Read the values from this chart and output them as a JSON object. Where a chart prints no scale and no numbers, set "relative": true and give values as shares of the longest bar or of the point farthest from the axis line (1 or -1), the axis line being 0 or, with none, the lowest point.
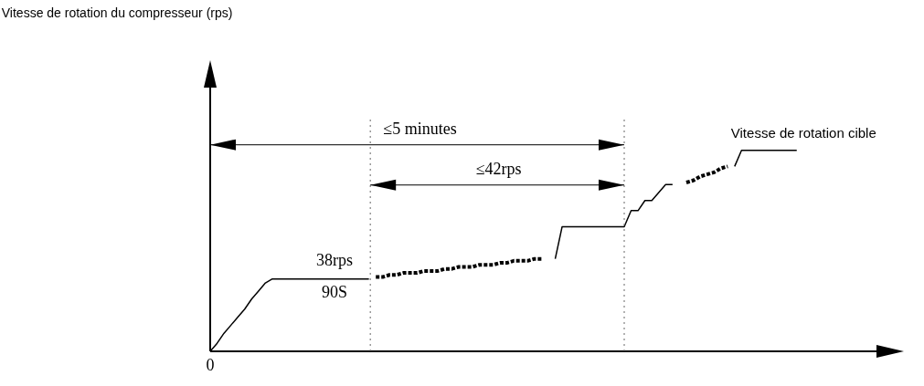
{
  "chart_data": {
    "type": "line",
    "relative": true,
    "legend": false,
    "marker": "none",
    "tick_labels": false,
    "categories": [
      null,
      null,
      null,
      null,
      null,
      null,
      null,
      null,
      null,
      null,
      null,
      null,
      null,
      null,
      null,
      null,
      null,
      null,
      null,
      null,
      null,
      null,
      null,
      null,
      null,
      null,
      null,
      null,
      null,
      null,
      null,
      null,
      null,
      null,
      null,
      null,
      null,
      null,
      null,
      null,
      null,
      null,
      null,
      null,
      null,
      null,
      null,
      null,
      null,
      null,
      null,
      null,
      null,
      null,
      null,
      null,
      null,
      null,
      null,
      null,
      null,
      null,
      null,
      null,
      null,
      null,
      null,
      null,
      null,
      null,
      null,
      null,
      null,
      null,
      null,
      null,
      null,
      null,
      null,
      null,
      null,
      null,
      null,
      null,
      null,
      null,
      null,
      null,
      null,
      null,
      null,
      null,
      null,
      null,
      null,
      null,
      null,
      null,
      null,
      null,
      null
    ],
    "series": [
      {
        "color": "#000000",
        "line_style": "solid",
        "values": [
          0,
          0.04,
          0.09,
          0.13,
          0.17,
          0.21,
          0.26,
          0.3,
          0.34,
          0.36,
          0.36,
          0.36,
          0.36,
          0.36,
          0.36,
          0.36,
          0.36,
          0.36,
          0.36,
          0.36,
          0.36,
          0.36,
          0.36,
          0.36,
          null,
          null,
          null,
          null,
          null,
          null,
          null,
          null,
          null,
          null,
          null,
          null,
          null,
          null,
          null,
          null,
          null,
          null,
          null,
          null,
          null,
          null,
          null,
          null,
          null,
          null,
          null,
          null,
          null,
          null,
          null,
          null,
          null,
          null,
          null,
          null,
          null,
          null,
          null,
          null,
          null,
          null,
          null,
          null,
          null,
          null,
          null,
          null,
          null,
          null,
          null,
          null,
          null,
          null,
          null,
          null,
          null,
          null,
          null,
          null,
          null,
          null,
          null,
          null,
          null,
          null,
          null,
          null,
          null,
          null,
          null,
          null,
          null,
          null,
          null,
          null,
          null
        ]
      },
      {
        "color": "#000000",
        "line_style": "dotted",
        "values": [
          null,
          null,
          null,
          null,
          null,
          null,
          null,
          null,
          null,
          null,
          null,
          null,
          null,
          null,
          null,
          null,
          null,
          null,
          null,
          null,
          null,
          null,
          null,
          null,
          0.37,
          0.37,
          0.38,
          0.38,
          0.39,
          0.39,
          0.39,
          0.4,
          0.4,
          0.4,
          0.41,
          0.41,
          0.42,
          0.42,
          0.42,
          0.43,
          0.43,
          0.43,
          0.44,
          0.44,
          0.45,
          0.45,
          0.45,
          0.46,
          0.46,
          null,
          null,
          null,
          null,
          null,
          null,
          null,
          null,
          null,
          null,
          null,
          null,
          null,
          null,
          null,
          null,
          null,
          null,
          null,
          null,
          null,
          null,
          null,
          null,
          null,
          null,
          null,
          null,
          null,
          null,
          null,
          null,
          null,
          null,
          null,
          null,
          null,
          null,
          null,
          null,
          null,
          null,
          null,
          null,
          null,
          null,
          null,
          null,
          null,
          null,
          null,
          null
        ]
      },
      {
        "color": "#000000",
        "line_style": "solid",
        "values": [
          null,
          null,
          null,
          null,
          null,
          null,
          null,
          null,
          null,
          null,
          null,
          null,
          null,
          null,
          null,
          null,
          null,
          null,
          null,
          null,
          null,
          null,
          null,
          null,
          null,
          null,
          null,
          null,
          null,
          null,
          null,
          null,
          null,
          null,
          null,
          null,
          null,
          null,
          null,
          null,
          null,
          null,
          null,
          null,
          null,
          null,
          null,
          null,
          null,
          null,
          0.46,
          0.62,
          0.62,
          0.62,
          0.62,
          0.62,
          0.62,
          0.62,
          0.62,
          0.62,
          0.62,
          0.7,
          0.7,
          0.75,
          0.75,
          0.79,
          0.83,
          0.83,
          null,
          null,
          null,
          null,
          null,
          null,
          null,
          null,
          null,
          null,
          null,
          null,
          null,
          null,
          null,
          null,
          null,
          null,
          null,
          null,
          null,
          null,
          null,
          null,
          null,
          null,
          null,
          null,
          null,
          null,
          null,
          null,
          null
        ]
      },
      {
        "color": "#000000",
        "line_style": "dotted",
        "values": [
          null,
          null,
          null,
          null,
          null,
          null,
          null,
          null,
          null,
          null,
          null,
          null,
          null,
          null,
          null,
          null,
          null,
          null,
          null,
          null,
          null,
          null,
          null,
          null,
          null,
          null,
          null,
          null,
          null,
          null,
          null,
          null,
          null,
          null,
          null,
          null,
          null,
          null,
          null,
          null,
          null,
          null,
          null,
          null,
          null,
          null,
          null,
          null,
          null,
          null,
          null,
          null,
          null,
          null,
          null,
          null,
          null,
          null,
          null,
          null,
          null,
          null,
          null,
          null,
          null,
          null,
          null,
          null,
          null,
          0.84,
          0.85,
          0.87,
          0.88,
          0.89,
          0.91,
          0.92,
          null,
          null,
          null,
          null,
          null,
          null,
          null,
          null,
          null,
          null,
          null,
          null,
          null,
          null,
          null,
          null,
          null,
          null,
          null,
          null,
          null,
          null,
          null,
          null,
          null
        ]
      },
      {
        "color": "#000000",
        "line_style": "solid",
        "values": [
          null,
          null,
          null,
          null,
          null,
          null,
          null,
          null,
          null,
          null,
          null,
          null,
          null,
          null,
          null,
          null,
          null,
          null,
          null,
          null,
          null,
          null,
          null,
          null,
          null,
          null,
          null,
          null,
          null,
          null,
          null,
          null,
          null,
          null,
          null,
          null,
          null,
          null,
          null,
          null,
          null,
          null,
          null,
          null,
          null,
          null,
          null,
          null,
          null,
          null,
          null,
          null,
          null,
          null,
          null,
          null,
          null,
          null,
          null,
          null,
          null,
          null,
          null,
          null,
          null,
          null,
          null,
          null,
          null,
          null,
          null,
          null,
          null,
          null,
          null,
          null,
          0.92,
          1,
          1,
          1,
          1,
          1,
          1,
          1,
          1,
          1,
          null,
          null,
          null,
          null,
          null,
          null,
          null,
          null,
          null,
          null,
          null,
          null,
          null,
          null,
          null
        ]
      }
    ],
    "annotations": [
      "≤5 minutes",
      "≤42rps",
      "Vitesse de rotation cible",
      "38rps",
      "90S",
      "0",
      "Vitesse de rotation du compresseur (rps)"
    ]
  }
}
